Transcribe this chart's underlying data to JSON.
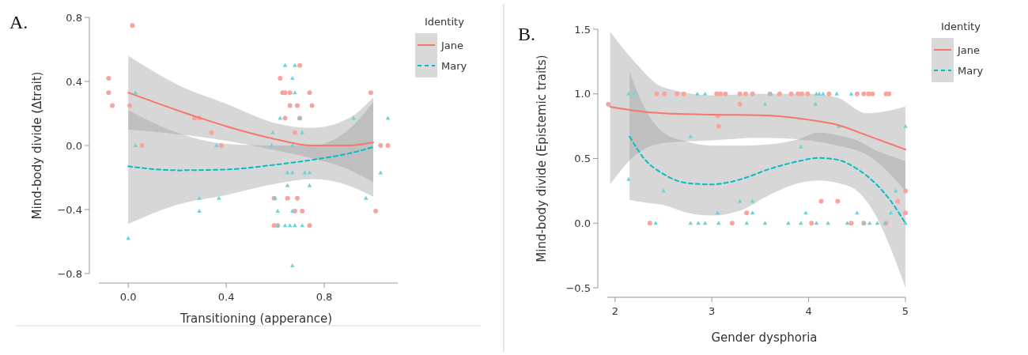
{
  "chart_data": [
    {
      "type": "line",
      "title": "A.",
      "xlabel": "Transitioning (apperance)",
      "ylabel": "Mind-body divide (Δtrait)",
      "legend_title": "Identity",
      "legend": "top right",
      "grid": false,
      "xlim": [
        -0.12,
        1.1
      ],
      "ylim": [
        -0.8,
        0.8
      ],
      "xticks": [
        {
          "value": 0,
          "label": "0.0"
        },
        0.4,
        0.8
      ],
      "yticks": [
        {
          "value": -0.8,
          "label": "−0.8"
        },
        {
          "value": -0.4,
          "label": "−0.4"
        },
        {
          "value": 0,
          "label": "0.0"
        },
        0.4,
        0.8
      ],
      "series": [
        {
          "type": "scatter",
          "color": "#f7a49d",
          "marker": "circle",
          "x": [
            -0.08,
            -0.08,
            -0.065,
            0.017,
            0.006,
            0.056,
            0.27,
            0.29,
            0.34,
            0.38,
            0.62,
            0.63,
            0.64,
            0.64,
            0.66,
            0.66,
            0.69,
            0.7,
            0.7,
            0.68,
            0.74,
            0.75,
            0.595,
            0.65,
            0.69,
            0.68,
            0.71,
            0.595,
            0.61,
            0.74,
            0.99,
            1.03,
            1.06,
            1.01
          ],
          "values": [
            0.42,
            0.33,
            0.25,
            0.75,
            0.25,
            0,
            0.17,
            0.17,
            0.08,
            0,
            0.42,
            0.33,
            0.33,
            0.17,
            0.25,
            0.33,
            0.25,
            0.5,
            0.17,
            0.08,
            0.33,
            0.25,
            -0.33,
            -0.33,
            -0.33,
            -0.41,
            -0.41,
            -0.5,
            -0.5,
            -0.5,
            0.33,
            0,
            0,
            -0.41
          ]
        },
        {
          "type": "scatter",
          "color": "#6fd3d5",
          "marker": "triangle",
          "x": [
            0.03,
            0.03,
            0,
            0.29,
            0.29,
            0.36,
            0.37,
            0.64,
            0.68,
            0.67,
            0.68,
            0.62,
            0.59,
            0.585,
            0.67,
            0.71,
            0.7,
            0.65,
            0.67,
            0.72,
            0.74,
            0.65,
            0.74,
            0.6,
            0.61,
            0.67,
            0.61,
            0.64,
            0.66,
            0.68,
            0.71,
            0.67,
            0.92,
            0.97,
            1.03,
            1.06
          ],
          "values": [
            0.33,
            0,
            -0.58,
            -0.33,
            -0.41,
            0,
            -0.33,
            0.5,
            0.5,
            0.42,
            0.33,
            0.17,
            0.08,
            0,
            0,
            0.08,
            0.17,
            -0.17,
            -0.17,
            -0.17,
            -0.17,
            -0.25,
            -0.25,
            -0.33,
            -0.41,
            -0.41,
            -0.5,
            -0.5,
            -0.5,
            -0.5,
            -0.5,
            -0.75,
            0.17,
            -0.33,
            -0.17,
            0.17
          ]
        },
        {
          "type": "line",
          "name": "Jane",
          "color": "#f8766d",
          "line_style": "solid",
          "x": [
            0,
            0.2,
            0.4,
            0.6,
            0.75,
            0.9,
            1.0
          ],
          "values": [
            0.33,
            0.22,
            0.12,
            0.04,
            0.0,
            0.0,
            0.02
          ],
          "lower": [
            0.1,
            0.07,
            0.03,
            -0.03,
            -0.08,
            -0.15,
            -0.23
          ],
          "upper": [
            0.56,
            0.38,
            0.26,
            0.14,
            0.11,
            0.17,
            0.3
          ]
        },
        {
          "type": "line",
          "name": "Mary",
          "color": "#00bfc4",
          "line_style": "dashed",
          "x": [
            0,
            0.2,
            0.4,
            0.6,
            0.75,
            0.9,
            1.0
          ],
          "values": [
            -0.13,
            -0.155,
            -0.15,
            -0.12,
            -0.09,
            -0.05,
            -0.01
          ],
          "lower": [
            -0.49,
            -0.37,
            -0.31,
            -0.24,
            -0.21,
            -0.25,
            -0.32
          ],
          "upper": [
            0.22,
            0.08,
            0.01,
            0.0,
            0.0,
            0.1,
            0.27
          ]
        }
      ]
    },
    {
      "type": "line",
      "title": "B.",
      "xlabel": "Gender dysphoria",
      "ylabel": "Mind-body divide (Epistemic traits)",
      "legend_title": "Identity",
      "legend": "top right",
      "grid": false,
      "xlim": [
        1.92,
        5.0
      ],
      "ylim": [
        -0.5,
        1.5
      ],
      "xticks": [
        2,
        3,
        4,
        5
      ],
      "yticks": [
        {
          "value": -0.5,
          "label": "−0.5"
        },
        {
          "value": 0,
          "label": "0.0"
        },
        {
          "value": 0.5,
          "label": "0.5"
        },
        {
          "value": 1,
          "label": "1.0"
        },
        1.5
      ],
      "series": [
        {
          "type": "scatter",
          "color": "#f7a49d",
          "marker": "circle",
          "x": [
            2.43,
            2.51,
            2.64,
            2.71,
            3.05,
            3.09,
            3.14,
            3.29,
            3.35,
            3.42,
            3.6,
            3.7,
            3.82,
            3.89,
            3.93,
            3.99,
            4.21,
            4.5,
            4.57,
            4.62,
            4.66,
            4.8,
            4.83,
            1.93,
            3.29,
            3.06,
            3.07,
            4.13,
            4.3,
            4.92,
            5.0,
            5.0,
            3.36,
            2.36,
            3.21,
            4.03,
            4.44,
            4.57,
            4.8
          ],
          "values": [
            1,
            1,
            1,
            1,
            1,
            1,
            1,
            1,
            1,
            1,
            1,
            1,
            1,
            1,
            1,
            1,
            1,
            1,
            1,
            1,
            1,
            1,
            1,
            0.92,
            0.92,
            0.83,
            0.75,
            0.17,
            0.17,
            0.17,
            0.25,
            0.08,
            0.08,
            0,
            0,
            0,
            0,
            0,
            0
          ]
        },
        {
          "type": "scatter",
          "color": "#6fd3d5",
          "marker": "triangle",
          "x": [
            2.14,
            2.2,
            2.85,
            2.93,
            3.61,
            4.08,
            4.11,
            4.15,
            4.29,
            4.44,
            2.14,
            2.78,
            3.55,
            4.07,
            3.92,
            5.0,
            4.31,
            2.5,
            3.29,
            3.42,
            3.06,
            3.42,
            3.97,
            4.5,
            4.85,
            4.9,
            2.42,
            2.78,
            2.86,
            2.93,
            3.07,
            3.36,
            3.55,
            3.79,
            3.92,
            4.08,
            4.2,
            4.4,
            4.57,
            4.63,
            4.71,
            4.79,
            5.0
          ],
          "values": [
            1,
            1,
            1,
            1,
            1,
            1,
            1,
            1,
            1,
            1,
            0.34,
            0.67,
            0.92,
            0.92,
            0.59,
            0.75,
            0.75,
            0.25,
            0.17,
            0.17,
            0.08,
            0.08,
            0.08,
            0.08,
            0.08,
            0.25,
            0,
            0,
            0,
            0,
            0,
            0,
            0,
            0,
            0,
            0,
            0,
            0,
            0,
            0,
            0,
            0,
            0
          ]
        },
        {
          "type": "line",
          "name": "Jane",
          "color": "#f8766d",
          "line_style": "solid",
          "x": [
            1.95,
            2.2,
            2.5,
            3,
            3.5,
            4,
            4.3,
            4.6,
            5
          ],
          "values": [
            0.9,
            0.87,
            0.85,
            0.84,
            0.835,
            0.8,
            0.76,
            0.68,
            0.57
          ],
          "lower": [
            0.3,
            0.52,
            0.62,
            0.64,
            0.66,
            0.64,
            0.6,
            0.53,
            0.25
          ],
          "upper": [
            1.48,
            1.25,
            1.05,
            0.99,
            1.0,
            1.0,
            0.97,
            0.85,
            0.9
          ]
        },
        {
          "type": "line",
          "name": "Mary",
          "color": "#00bfc4",
          "line_style": "dashed",
          "x": [
            2.15,
            2.3,
            2.5,
            2.75,
            3,
            3.3,
            3.6,
            3.9,
            4.1,
            4.3,
            4.5,
            4.7,
            4.85,
            5
          ],
          "values": [
            0.67,
            0.5,
            0.38,
            0.31,
            0.3,
            0.34,
            0.42,
            0.48,
            0.505,
            0.49,
            0.42,
            0.3,
            0.17,
            0.0
          ],
          "lower": [
            0.18,
            0.16,
            0.14,
            0.08,
            0.06,
            0.1,
            0.22,
            0.31,
            0.33,
            0.31,
            0.25,
            0.05,
            -0.2,
            -0.5
          ],
          "upper": [
            1.17,
            0.9,
            0.7,
            0.63,
            0.6,
            0.6,
            0.61,
            0.65,
            0.7,
            0.68,
            0.64,
            0.56,
            0.52,
            0.48
          ]
        }
      ]
    }
  ]
}
